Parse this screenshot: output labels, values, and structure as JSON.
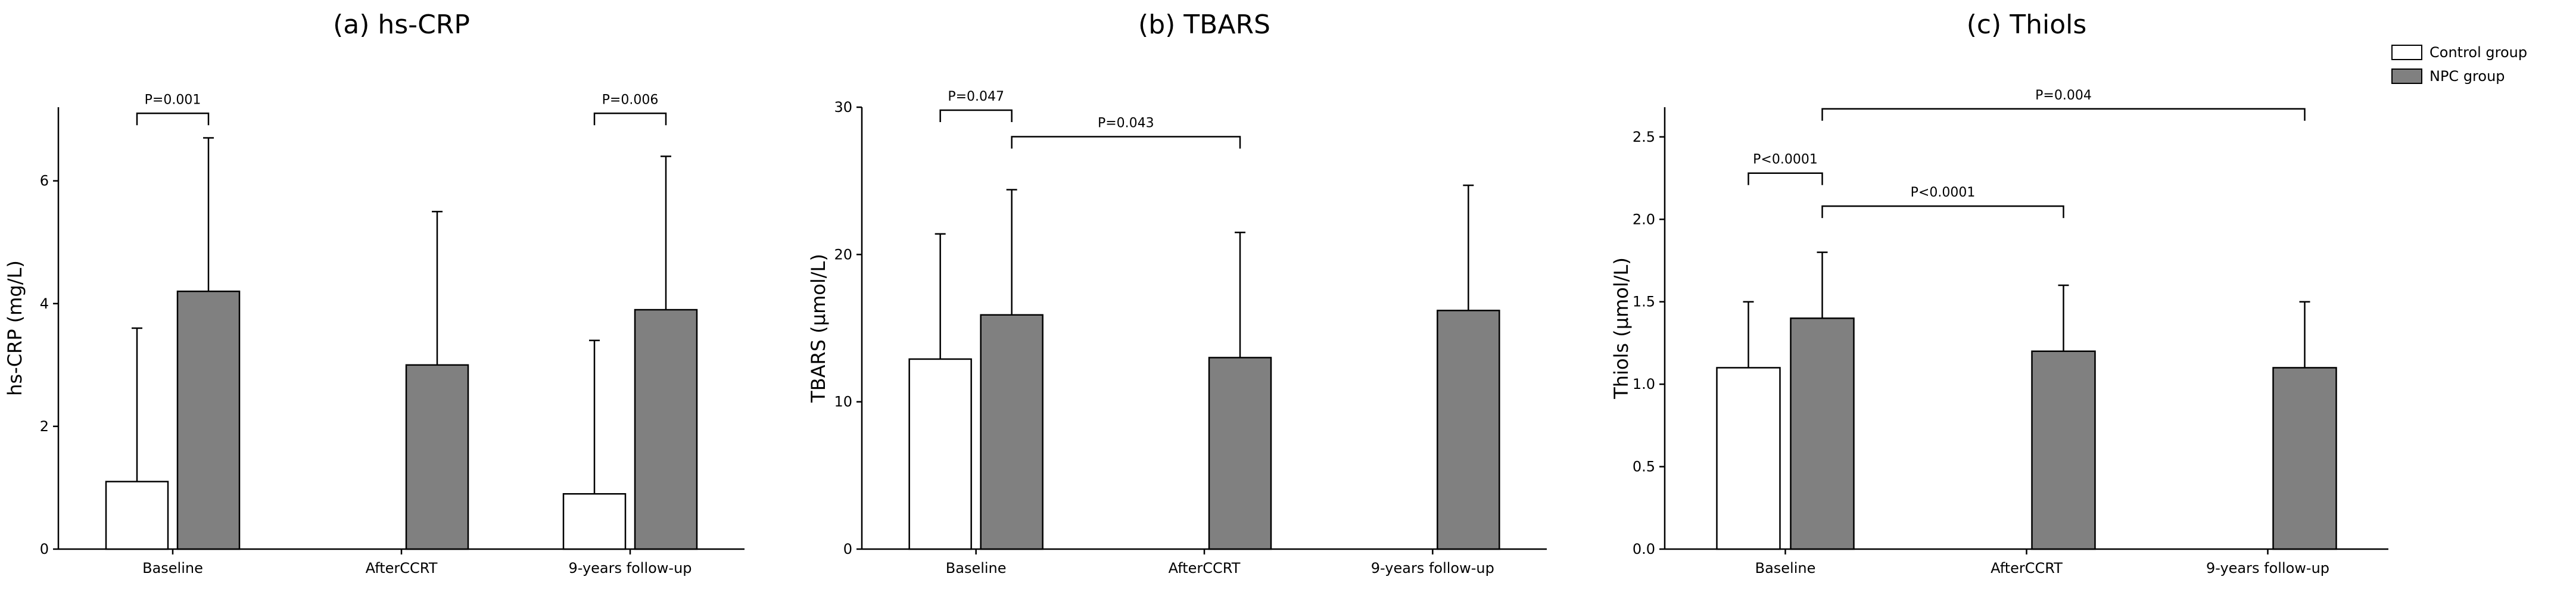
{
  "chart_data": [
    {
      "type": "bar",
      "title": "(a) hs-CRP",
      "ylabel": "hs-CRP (mg/L)",
      "xlabel": "",
      "categories": [
        "Baseline",
        "AfterCCRT",
        "9-years follow-up"
      ],
      "ylim": [
        0,
        7.2
      ],
      "yticks": [
        0,
        2,
        4,
        6
      ],
      "ytick_labels": [
        "0",
        "2",
        "4",
        "6"
      ],
      "series": [
        {
          "name": "Control group",
          "values": [
            1.1,
            null,
            0.9
          ],
          "errors": [
            3.6,
            null,
            3.4
          ]
        },
        {
          "name": "NPC group",
          "values": [
            4.2,
            3.0,
            3.9
          ],
          "errors": [
            6.7,
            5.5,
            6.4
          ]
        }
      ],
      "annotations": [
        {
          "text": "P=0.001",
          "from": [
            0,
            0
          ],
          "to": [
            0,
            1
          ],
          "level": 7.1
        },
        {
          "text": "P=0.006",
          "from": [
            2,
            0
          ],
          "to": [
            2,
            1
          ],
          "level": 7.1
        }
      ]
    },
    {
      "type": "bar",
      "title": "(b) TBARS",
      "ylabel": "TBARS (µmol/L)",
      "xlabel": "",
      "categories": [
        "Baseline",
        "AfterCCRT",
        "9-years follow-up"
      ],
      "ylim": [
        0,
        30
      ],
      "yticks": [
        0,
        10,
        20,
        30
      ],
      "ytick_labels": [
        "0",
        "10",
        "20",
        "30"
      ],
      "series": [
        {
          "name": "Control group",
          "values": [
            12.9,
            null,
            null
          ],
          "errors": [
            21.4,
            null,
            null
          ]
        },
        {
          "name": "NPC group",
          "values": [
            15.9,
            13.0,
            16.2
          ],
          "errors": [
            24.4,
            21.5,
            24.7
          ]
        }
      ],
      "annotations": [
        {
          "text": "P=0.047",
          "from": [
            0,
            0
          ],
          "to": [
            0,
            1
          ],
          "level": 29.8
        },
        {
          "text": "P=0.043",
          "from": [
            0,
            1
          ],
          "to": [
            1,
            1
          ],
          "level": 28.0
        }
      ]
    },
    {
      "type": "bar",
      "title": "(c) Thiols",
      "ylabel": "Thiols (µmol/L)",
      "xlabel": "",
      "categories": [
        "Baseline",
        "AfterCCRT",
        "9-years follow-up"
      ],
      "ylim": [
        0,
        2.68
      ],
      "yticks": [
        0,
        0.5,
        1.0,
        1.5,
        2.0,
        2.5
      ],
      "ytick_labels": [
        "0.0",
        "0.5",
        "1.0",
        "1.5",
        "2.0",
        "2.5"
      ],
      "series": [
        {
          "name": "Control group",
          "values": [
            1.1,
            null,
            null
          ],
          "errors": [
            1.5,
            null,
            null
          ]
        },
        {
          "name": "NPC group",
          "values": [
            1.4,
            1.2,
            1.1
          ],
          "errors": [
            1.8,
            1.6,
            1.5
          ]
        }
      ],
      "annotations": [
        {
          "text": "P=0.004",
          "from": [
            0,
            1
          ],
          "to": [
            2,
            1
          ],
          "level": 2.67
        },
        {
          "text": "P<0.0001",
          "from": [
            0,
            0
          ],
          "to": [
            0,
            1
          ],
          "level": 2.28
        },
        {
          "text": "P<0.0001",
          "from": [
            0,
            1
          ],
          "to": [
            1,
            1
          ],
          "level": 2.08
        }
      ]
    }
  ],
  "legend": {
    "items": [
      {
        "label": "Control group",
        "color": "#ffffff"
      },
      {
        "label": "NPC group",
        "color": "#808080"
      }
    ],
    "placement": "top-right"
  },
  "colors": {
    "control": "#ffffff",
    "npc": "#808080",
    "ink": "#000000"
  }
}
